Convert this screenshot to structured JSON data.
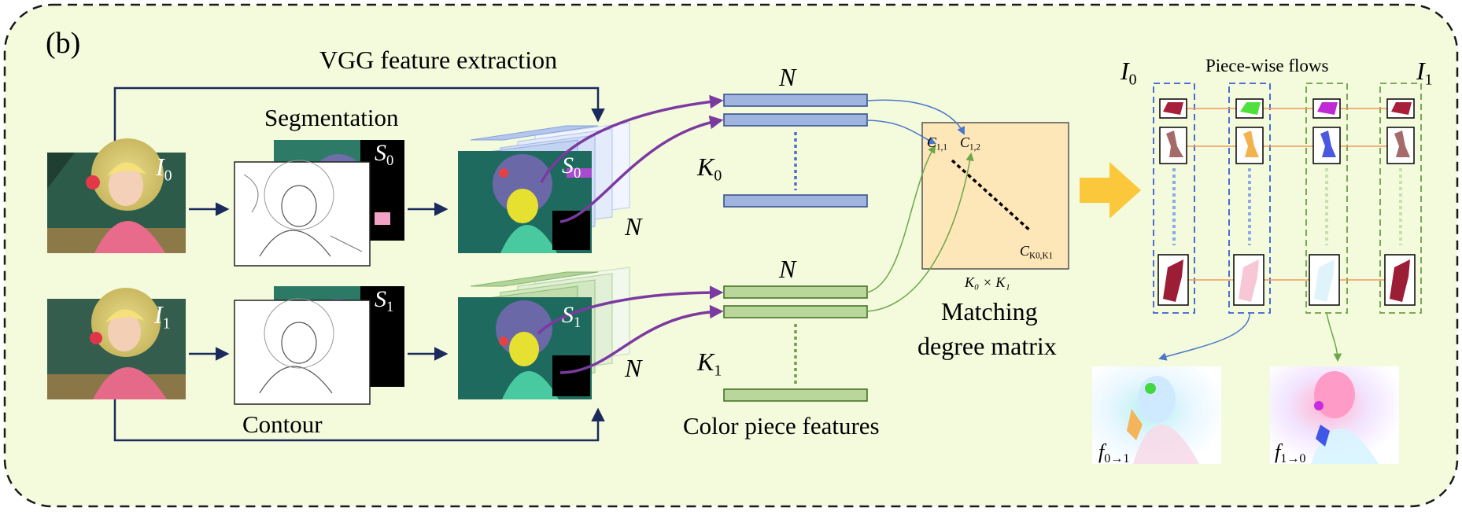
{
  "panel_label": "(b)",
  "labels": {
    "vgg": "VGG feature extraction",
    "segmentation": "Segmentation",
    "contour": "Contour",
    "color_piece_features": "Color piece features",
    "matching_line1": "Matching",
    "matching_line2": "degree matrix",
    "piecewise_flows": "Piece-wise flows"
  },
  "symbols": {
    "I": "I",
    "S": "S",
    "K": "K",
    "N": "N",
    "C": "C",
    "f": "f",
    "sub0": "0",
    "sub1": "1",
    "c11_sub": "1,1",
    "c12_sub": "1,2",
    "ck_sub": "K0,K1",
    "matrix_dims": "K₀ × K₁",
    "flow01_sub": "0→1",
    "flow10_sub": "1→0"
  },
  "colors": {
    "background_panel": "#f4fadc",
    "dashed_border": "#1a1a1a",
    "arrow_navy": "#1b2a5c",
    "blue_feature": "#9fb5e0",
    "blue_feature_edge": "#304a86",
    "green_feature": "#b9d79a",
    "green_feature_edge": "#3e6a22",
    "matrix_fill": "#fde6b8",
    "purple_arrow": "#7b3aa0",
    "big_arrow": "#fbc83c",
    "piece_line": "#ef9b5c",
    "blue_dash": "#4a6fc9",
    "green_dash": "#6b9f45"
  },
  "icons": [
    "image-I0-icon",
    "image-I1-icon",
    "flow-map-icon"
  ]
}
